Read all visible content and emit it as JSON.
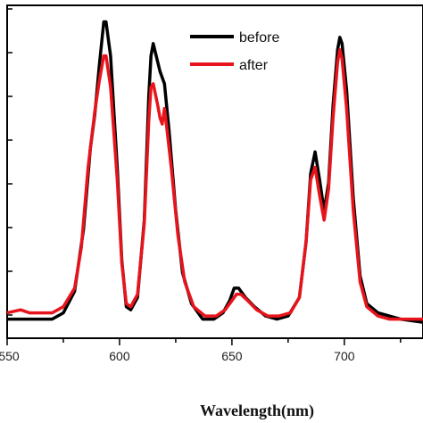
{
  "chart_data": {
    "type": "line",
    "title": "",
    "xlabel": "Wavelength(nm)",
    "ylabel": "",
    "xlim": [
      550,
      735
    ],
    "ylim": [
      0,
      1
    ],
    "x_ticks": [
      550,
      600,
      650,
      700
    ],
    "x_tick_labels": [
      "550",
      "600",
      "650",
      "700"
    ],
    "y_tick_count": 8,
    "y_tick_labels_visible": false,
    "legend": {
      "placement": "top-right"
    },
    "series": [
      {
        "name": "before",
        "color": "#000000",
        "points": [
          [
            550,
            0.03
          ],
          [
            560,
            0.03
          ],
          [
            570,
            0.03
          ],
          [
            575,
            0.05
          ],
          [
            580,
            0.12
          ],
          [
            584,
            0.32
          ],
          [
            587,
            0.58
          ],
          [
            589,
            0.69
          ],
          [
            591,
            0.85
          ],
          [
            593,
            0.99
          ],
          [
            594,
            0.99
          ],
          [
            596,
            0.88
          ],
          [
            599,
            0.52
          ],
          [
            601,
            0.22
          ],
          [
            603,
            0.07
          ],
          [
            605,
            0.06
          ],
          [
            608,
            0.1
          ],
          [
            611,
            0.35
          ],
          [
            613,
            0.75
          ],
          [
            614,
            0.88
          ],
          [
            615,
            0.92
          ],
          [
            616,
            0.89
          ],
          [
            618,
            0.83
          ],
          [
            620,
            0.79
          ],
          [
            622,
            0.64
          ],
          [
            625,
            0.38
          ],
          [
            628,
            0.18
          ],
          [
            632,
            0.08
          ],
          [
            637,
            0.03
          ],
          [
            642,
            0.03
          ],
          [
            646,
            0.05
          ],
          [
            649,
            0.09
          ],
          [
            651,
            0.13
          ],
          [
            653,
            0.13
          ],
          [
            656,
            0.1
          ],
          [
            660,
            0.07
          ],
          [
            665,
            0.04
          ],
          [
            670,
            0.03
          ],
          [
            675,
            0.04
          ],
          [
            680,
            0.1
          ],
          [
            683,
            0.28
          ],
          [
            685,
            0.5
          ],
          [
            687,
            0.57
          ],
          [
            689,
            0.48
          ],
          [
            691,
            0.38
          ],
          [
            693,
            0.47
          ],
          [
            695,
            0.72
          ],
          [
            697,
            0.9
          ],
          [
            698,
            0.94
          ],
          [
            699,
            0.92
          ],
          [
            701,
            0.77
          ],
          [
            704,
            0.42
          ],
          [
            707,
            0.17
          ],
          [
            710,
            0.08
          ],
          [
            715,
            0.05
          ],
          [
            720,
            0.04
          ],
          [
            725,
            0.03
          ],
          [
            735,
            0.02
          ]
        ]
      },
      {
        "name": "after",
        "color": "#e8141c",
        "points": [
          [
            550,
            0.05
          ],
          [
            556,
            0.06
          ],
          [
            560,
            0.05
          ],
          [
            565,
            0.05
          ],
          [
            570,
            0.05
          ],
          [
            575,
            0.07
          ],
          [
            580,
            0.13
          ],
          [
            583,
            0.26
          ],
          [
            586,
            0.52
          ],
          [
            589,
            0.7
          ],
          [
            591,
            0.8
          ],
          [
            593,
            0.88
          ],
          [
            594,
            0.88
          ],
          [
            596,
            0.78
          ],
          [
            599,
            0.48
          ],
          [
            601,
            0.21
          ],
          [
            603,
            0.08
          ],
          [
            605,
            0.07
          ],
          [
            608,
            0.11
          ],
          [
            611,
            0.34
          ],
          [
            613,
            0.67
          ],
          [
            614,
            0.78
          ],
          [
            615,
            0.79
          ],
          [
            617,
            0.72
          ],
          [
            618,
            0.68
          ],
          [
            619,
            0.66
          ],
          [
            620,
            0.71
          ],
          [
            621,
            0.65
          ],
          [
            623,
            0.52
          ],
          [
            626,
            0.3
          ],
          [
            629,
            0.15
          ],
          [
            633,
            0.07
          ],
          [
            638,
            0.04
          ],
          [
            643,
            0.04
          ],
          [
            647,
            0.06
          ],
          [
            650,
            0.09
          ],
          [
            652,
            0.11
          ],
          [
            654,
            0.11
          ],
          [
            657,
            0.09
          ],
          [
            661,
            0.06
          ],
          [
            666,
            0.04
          ],
          [
            671,
            0.04
          ],
          [
            676,
            0.05
          ],
          [
            680,
            0.1
          ],
          [
            683,
            0.28
          ],
          [
            685,
            0.48
          ],
          [
            687,
            0.52
          ],
          [
            689,
            0.43
          ],
          [
            691,
            0.35
          ],
          [
            693,
            0.45
          ],
          [
            695,
            0.68
          ],
          [
            697,
            0.86
          ],
          [
            698,
            0.9
          ],
          [
            699,
            0.87
          ],
          [
            701,
            0.71
          ],
          [
            704,
            0.38
          ],
          [
            707,
            0.15
          ],
          [
            710,
            0.07
          ],
          [
            715,
            0.04
          ],
          [
            720,
            0.03
          ],
          [
            725,
            0.03
          ],
          [
            735,
            0.03
          ]
        ]
      }
    ]
  }
}
